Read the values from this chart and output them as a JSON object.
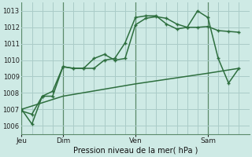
{
  "background_color": "#ceeae5",
  "grid_color": "#aaccc8",
  "line_color": "#2d6e3e",
  "title": "Pression niveau de la mer( hPa )",
  "ylim": [
    1005.5,
    1013.5
  ],
  "yticks": [
    1006,
    1007,
    1008,
    1009,
    1010,
    1011,
    1012,
    1013
  ],
  "day_labels": [
    "Jeu",
    "Dim",
    "Ven",
    "Sam"
  ],
  "day_positions": [
    0,
    4,
    11,
    18
  ],
  "xlim": [
    0,
    22
  ],
  "line1_x": [
    0,
    1,
    2,
    3,
    4,
    5,
    6,
    7,
    8,
    9,
    10,
    11,
    12,
    13,
    14,
    15,
    16,
    17,
    18,
    19,
    20,
    21
  ],
  "line1_y": [
    1006.9,
    1006.7,
    1007.8,
    1007.8,
    1009.6,
    1009.5,
    1009.5,
    1010.1,
    1010.35,
    1010.0,
    1010.1,
    1012.15,
    1012.55,
    1012.65,
    1012.55,
    1012.2,
    1012.0,
    1012.0,
    1012.05,
    1011.8,
    1011.75,
    1011.7
  ],
  "line2_x": [
    0,
    1,
    2,
    3,
    4,
    5,
    6,
    7,
    8,
    9,
    10,
    11,
    12,
    13,
    14,
    15,
    16,
    17,
    18,
    19,
    20,
    21
  ],
  "line2_y": [
    1007.0,
    1006.1,
    1007.8,
    1008.1,
    1009.6,
    1009.5,
    1009.5,
    1009.5,
    1010.0,
    1010.1,
    1011.05,
    1012.6,
    1012.7,
    1012.7,
    1012.2,
    1011.9,
    1012.0,
    1013.0,
    1012.6,
    1010.1,
    1008.6,
    1009.5
  ],
  "line3_x": [
    0,
    4,
    11,
    18,
    21
  ],
  "line3_y": [
    1007.0,
    1007.8,
    1008.55,
    1009.2,
    1009.5
  ],
  "vline_positions": [
    0,
    4,
    11,
    18
  ],
  "marker_size": 3.0,
  "linewidth": 1.1
}
